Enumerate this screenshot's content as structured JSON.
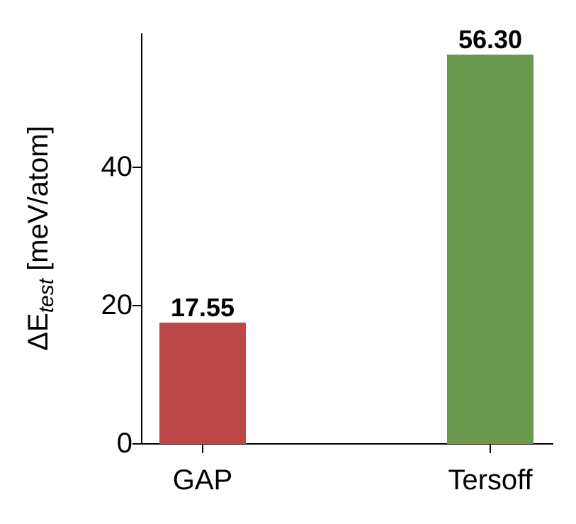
{
  "chart_data": {
    "type": "bar",
    "title": "",
    "xlabel": "",
    "ylabel": "ΔE_test [meV/atom]",
    "ylabel_parts": {
      "main": "ΔE",
      "subscript": "test",
      "unit": "[meV/atom]"
    },
    "categories": [
      "GAP",
      "Tersoff"
    ],
    "values": [
      17.55,
      56.3
    ],
    "value_labels": [
      "17.55",
      "56.30"
    ],
    "bar_colors": [
      "#BC4749",
      "#6A994E"
    ],
    "ylim": [
      0,
      59.4
    ],
    "yticks": [
      0,
      20,
      40
    ],
    "ytick_labels": [
      "0",
      "20",
      "40"
    ],
    "grid": false,
    "legend": null
  }
}
